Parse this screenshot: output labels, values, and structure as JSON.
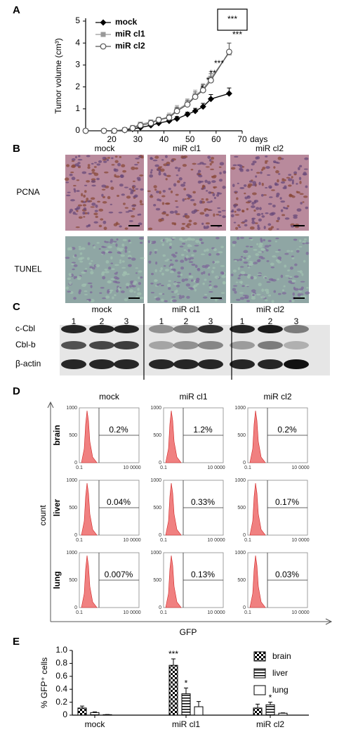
{
  "panel_labels": [
    "A",
    "B",
    "C",
    "D",
    "E"
  ],
  "chart_data": [
    {
      "type": "line",
      "y_label": "Tumor volume (cm³)",
      "x_label": "days",
      "x": [
        10,
        17,
        21,
        25,
        28,
        31,
        35,
        38,
        42,
        45,
        49,
        52,
        55,
        58,
        65
      ],
      "xlim": [
        10,
        70
      ],
      "xticks": [
        20,
        30,
        40,
        50,
        60,
        70
      ],
      "ylim": [
        0,
        5
      ],
      "yticks": [
        0,
        1,
        2,
        3,
        4,
        5
      ],
      "series": [
        {
          "name": "mock",
          "color": "#000000",
          "marker": "diamond",
          "values": [
            0,
            0,
            0,
            0.03,
            0.08,
            0.15,
            0.25,
            0.35,
            0.45,
            0.55,
            0.75,
            0.9,
            1.1,
            1.45,
            1.7
          ],
          "errors": [
            0,
            0,
            0,
            0.02,
            0.03,
            0.05,
            0.05,
            0.07,
            0.08,
            0.1,
            0.1,
            0.12,
            0.15,
            0.2,
            0.25
          ]
        },
        {
          "name": "miR cl1",
          "color": "#999999",
          "marker": "square",
          "values": [
            0,
            0,
            0,
            0.05,
            0.15,
            0.3,
            0.4,
            0.5,
            0.65,
            0.95,
            1.25,
            1.6,
            1.9,
            2.4,
            3.55
          ],
          "errors": [
            0,
            0,
            0,
            0.03,
            0.05,
            0.08,
            0.1,
            0.12,
            0.15,
            0.2,
            0.2,
            0.25,
            0.25,
            0.3,
            0.45
          ]
        },
        {
          "name": "miR cl2",
          "color": "#555555",
          "marker": "circle",
          "values": [
            0,
            0,
            0,
            0.04,
            0.12,
            0.25,
            0.35,
            0.5,
            0.6,
            0.9,
            1.2,
            1.55,
            1.85,
            2.3,
            3.6
          ],
          "errors": [
            0,
            0,
            0,
            0.03,
            0.05,
            0.07,
            0.1,
            0.1,
            0.12,
            0.18,
            0.2,
            0.22,
            0.25,
            0.3,
            0.4
          ]
        }
      ],
      "annotations": [
        "***",
        "***",
        "***",
        "**",
        "*",
        "*"
      ]
    },
    {
      "type": "bar",
      "y_label": "% GFP⁺ cells",
      "categories": [
        "mock",
        "miR cl1",
        "miR cl2"
      ],
      "ylim": [
        0,
        1
      ],
      "yticks": [
        0,
        0.2,
        0.4,
        0.6,
        0.8,
        {
          "value": 1,
          "label": "1.0"
        }
      ],
      "series": [
        {
          "name": "brain",
          "color": "#000000",
          "pattern": "checker",
          "values": [
            0.11,
            0.77,
            0.11
          ],
          "errors": [
            0.03,
            0.1,
            0.06
          ]
        },
        {
          "name": "liver",
          "color": "#000000",
          "pattern": "stripes",
          "values": [
            0.04,
            0.33,
            0.16
          ],
          "errors": [
            0.01,
            0.09,
            0.04
          ]
        },
        {
          "name": "lung",
          "color": "#000000",
          "pattern": "none",
          "values": [
            0.007,
            0.13,
            0.03
          ],
          "errors": [
            0.003,
            0.08,
            0.005
          ]
        }
      ],
      "annotations": [
        "***",
        "*",
        "*"
      ]
    }
  ],
  "histology": {
    "columns": [
      "mock",
      "miR cl1",
      "miR cl2"
    ],
    "rows": [
      "PCNA",
      "TUNEL"
    ]
  },
  "western_blot": {
    "groups": [
      "mock",
      "miR cl1",
      "miR cl2"
    ],
    "lanes": [
      "1",
      "2",
      "3"
    ],
    "rows": [
      "c-Cbl",
      "Cbl-b",
      "β-actin"
    ]
  },
  "flow_cytometry": {
    "columns": [
      "mock",
      "miR cl1",
      "miR cl2"
    ],
    "rows": [
      "brain",
      "liver",
      "lung"
    ],
    "percentages": [
      [
        "0.2%",
        "1.2%",
        "0.2%"
      ],
      [
        "0.04%",
        "0.33%",
        "0.17%"
      ],
      [
        "0.007%",
        "0.13%",
        "0.03%"
      ]
    ],
    "y_ticks": [
      "1000",
      "500",
      "0"
    ],
    "x_ticks": [
      "0.1",
      "10 0000"
    ],
    "y_label": "count",
    "x_label": "GFP"
  }
}
